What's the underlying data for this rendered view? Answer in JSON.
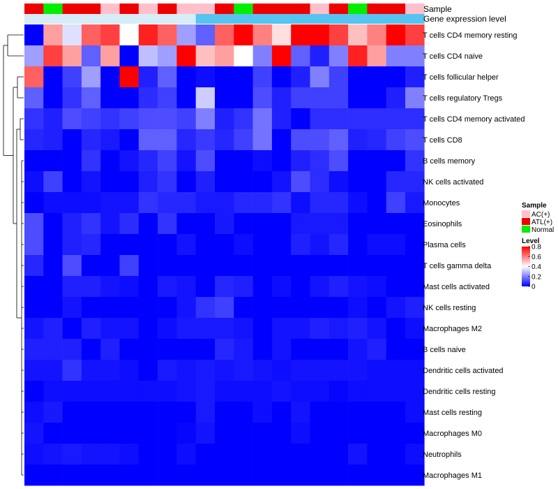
{
  "chart_data": {
    "type": "heatmap",
    "title": "",
    "annotation_tracks": {
      "sample": {
        "label": "Sample",
        "values": [
          "ATL(+)",
          "Normal",
          "ATL(+)",
          "ATL(+)",
          "AC(+)",
          "ATL(+)",
          "AC(+)",
          "ATL(+)",
          "AC(+)",
          "AC(+)",
          "ATL(+)",
          "Normal",
          "ATL(+)",
          "ATL(+)",
          "ATL(+)",
          "AC(+)",
          "ATL(+)",
          "Normal",
          "ATL(+)",
          "ATL(+)",
          "AC(+)"
        ]
      },
      "gene_expression": {
        "label": "Gene expression level",
        "values": [
          "low",
          "low",
          "low",
          "low",
          "low",
          "low",
          "low",
          "low",
          "low",
          "high",
          "high",
          "high",
          "high",
          "high",
          "high",
          "high",
          "high",
          "high",
          "high",
          "high",
          "high"
        ]
      }
    },
    "rows": [
      "T cells CD4 memory resting",
      "T cells CD4 naive",
      "T cells follicular helper",
      "T cells regulatory  Tregs",
      "T cells CD4 memory activated",
      "T cells CD8",
      "B cells memory",
      "NK cells activated",
      "Monocytes",
      "Eosinophils",
      "Plasma cells",
      "T cells gamma delta",
      "Mast cells activated",
      "NK cells resting",
      "Macrophages M2",
      "B cells naive",
      "Dendritic cells activated",
      "Dendritic cells resting",
      "Mast cells resting",
      "Macrophages M0",
      "Neutrophils",
      "Macrophages M1"
    ],
    "n_columns": 21,
    "values": [
      [
        0.0,
        0.55,
        0.35,
        0.65,
        0.7,
        0.4,
        0.75,
        0.65,
        0.25,
        0.15,
        0.65,
        0.8,
        0.6,
        0.45,
        0.8,
        0.8,
        0.7,
        0.5,
        0.6,
        0.8,
        0.7
      ],
      [
        0.25,
        0.7,
        0.55,
        0.15,
        0.55,
        0.0,
        0.3,
        0.25,
        0.8,
        0.5,
        0.55,
        0.4,
        0.2,
        0.8,
        0.15,
        0.05,
        0.2,
        0.75,
        0.55,
        0.2,
        0.2
      ],
      [
        0.65,
        0.0,
        0.1,
        0.25,
        0.0,
        0.8,
        0.05,
        0.15,
        0.0,
        0.02,
        0.0,
        0.0,
        0.1,
        0.0,
        0.05,
        0.2,
        0.1,
        0.0,
        0.0,
        0.0,
        0.05
      ],
      [
        0.15,
        0.0,
        0.08,
        0.15,
        0.0,
        0.0,
        0.07,
        0.1,
        0.0,
        0.32,
        0.0,
        0.0,
        0.12,
        0.05,
        0.1,
        0.1,
        0.1,
        0.0,
        0.0,
        0.05,
        0.2
      ],
      [
        0.08,
        0.05,
        0.12,
        0.1,
        0.08,
        0.1,
        0.12,
        0.12,
        0.1,
        0.2,
        0.05,
        0.08,
        0.18,
        0.05,
        0.0,
        0.07,
        0.07,
        0.07,
        0.07,
        0.07,
        0.07
      ],
      [
        0.06,
        0.05,
        0.0,
        0.06,
        0.04,
        0.0,
        0.15,
        0.15,
        0.06,
        0.09,
        0.06,
        0.1,
        0.18,
        0.0,
        0.12,
        0.12,
        0.15,
        0.05,
        0.06,
        0.1,
        0.12
      ],
      [
        0.0,
        0.0,
        0.0,
        0.08,
        0.0,
        0.03,
        0.06,
        0.1,
        0.03,
        0.12,
        0.0,
        0.0,
        0.02,
        0.0,
        0.05,
        0.07,
        0.12,
        0.0,
        0.0,
        0.0,
        0.08
      ],
      [
        0.02,
        0.1,
        0.0,
        0.03,
        0.0,
        0.0,
        0.05,
        0.08,
        0.0,
        0.05,
        0.0,
        0.0,
        0.0,
        0.03,
        0.12,
        0.07,
        0.02,
        0.0,
        0.0,
        0.06,
        0.06
      ],
      [
        0.0,
        0.02,
        0.02,
        0.02,
        0.03,
        0.03,
        0.08,
        0.06,
        0.06,
        0.04,
        0.04,
        0.06,
        0.06,
        0.08,
        0.02,
        0.06,
        0.06,
        0.02,
        0.0,
        0.1,
        0.04
      ],
      [
        0.12,
        0.0,
        0.05,
        0.08,
        0.03,
        0.07,
        0.0,
        0.08,
        0.0,
        0.0,
        0.04,
        0.0,
        0.0,
        0.0,
        0.04,
        0.04,
        0.04,
        0.0,
        0.0,
        0.0,
        0.0
      ],
      [
        0.12,
        0.0,
        0.05,
        0.06,
        0.0,
        0.0,
        0.0,
        0.0,
        0.03,
        0.0,
        0.0,
        0.02,
        0.0,
        0.0,
        0.05,
        0.03,
        0.06,
        0.0,
        0.02,
        0.02,
        0.0
      ],
      [
        0.06,
        0.0,
        0.12,
        0.0,
        0.0,
        0.1,
        0.0,
        0.0,
        0.0,
        0.0,
        0.0,
        0.0,
        0.0,
        0.0,
        0.0,
        0.0,
        0.0,
        0.0,
        0.0,
        0.0,
        0.0
      ],
      [
        0.0,
        0.0,
        0.05,
        0.05,
        0.03,
        0.02,
        0.0,
        0.04,
        0.03,
        0.0,
        0.06,
        0.05,
        0.0,
        0.02,
        0.0,
        0.03,
        0.05,
        0.03,
        0.02,
        0.0,
        0.0
      ],
      [
        0.0,
        0.0,
        0.03,
        0.0,
        0.0,
        0.0,
        0.0,
        0.0,
        0.03,
        0.08,
        0.1,
        0.0,
        0.0,
        0.0,
        0.0,
        0.0,
        0.0,
        0.02,
        0.0,
        0.03,
        0.05
      ],
      [
        0.03,
        0.05,
        0.0,
        0.05,
        0.03,
        0.03,
        0.0,
        0.02,
        0.04,
        0.04,
        0.04,
        0.03,
        0.0,
        0.03,
        0.03,
        0.05,
        0.04,
        0.05,
        0.03,
        0.0,
        0.02
      ],
      [
        0.05,
        0.05,
        0.05,
        0.0,
        0.05,
        0.0,
        0.0,
        0.0,
        0.0,
        0.0,
        0.06,
        0.04,
        0.0,
        0.03,
        0.0,
        0.0,
        0.0,
        0.03,
        0.05,
        0.0,
        0.0
      ],
      [
        0.03,
        0.03,
        0.08,
        0.03,
        0.03,
        0.02,
        0.0,
        0.04,
        0.03,
        0.04,
        0.03,
        0.04,
        0.03,
        0.02,
        0.03,
        0.03,
        0.03,
        0.03,
        0.02,
        0.02,
        0.02
      ],
      [
        0.0,
        0.02,
        0.02,
        0.02,
        0.02,
        0.02,
        0.02,
        0.02,
        0.03,
        0.04,
        0.02,
        0.02,
        0.02,
        0.03,
        0.02,
        0.02,
        0.01,
        0.02,
        0.02,
        0.02,
        0.02
      ],
      [
        0.02,
        0.04,
        0.0,
        0.0,
        0.0,
        0.0,
        0.0,
        0.0,
        0.0,
        0.04,
        0.0,
        0.0,
        0.02,
        0.0,
        0.03,
        0.0,
        0.0,
        0.0,
        0.0,
        0.0,
        0.02
      ],
      [
        0.03,
        0.0,
        0.0,
        0.0,
        0.0,
        0.0,
        0.0,
        0.0,
        0.01,
        0.03,
        0.0,
        0.0,
        0.0,
        0.0,
        0.02,
        0.0,
        0.0,
        0.0,
        0.0,
        0.0,
        0.0
      ],
      [
        0.02,
        0.03,
        0.04,
        0.03,
        0.03,
        0.02,
        0.0,
        0.0,
        0.02,
        0.0,
        0.0,
        0.0,
        0.0,
        0.0,
        0.0,
        0.0,
        0.0,
        0.03,
        0.0,
        0.0,
        0.02
      ],
      [
        0.0,
        0.0,
        0.0,
        0.0,
        0.0,
        0.0,
        0.0,
        0.0,
        0.0,
        0.0,
        0.0,
        0.0,
        0.0,
        0.0,
        0.0,
        0.0,
        0.0,
        0.0,
        0.0,
        0.0,
        0.0
      ]
    ],
    "color_scale": {
      "min": 0,
      "max": 0.8,
      "colors": [
        "#0000ff",
        "#ffffff",
        "#ff0000"
      ],
      "midpoint": 0.4
    },
    "legend": {
      "sample_title": "Sample",
      "sample_items": [
        {
          "label": "AC(+)",
          "color": "#ffc0cb"
        },
        {
          "label": "ATL(+)",
          "color": "#ee0000"
        },
        {
          "label": "Normal",
          "color": "#00ee00"
        }
      ],
      "level_title": "Level",
      "level_ticks": [
        "0.8",
        "0.6",
        "0.4",
        "0.2",
        "0"
      ],
      "level_tick_values": [
        0.8,
        0.6,
        0.4,
        0.2,
        0
      ]
    },
    "gene_expression_colors": {
      "low": "#d6ecf6",
      "high": "#56c3f0"
    },
    "dendrogram": "row clustering tree on left"
  }
}
